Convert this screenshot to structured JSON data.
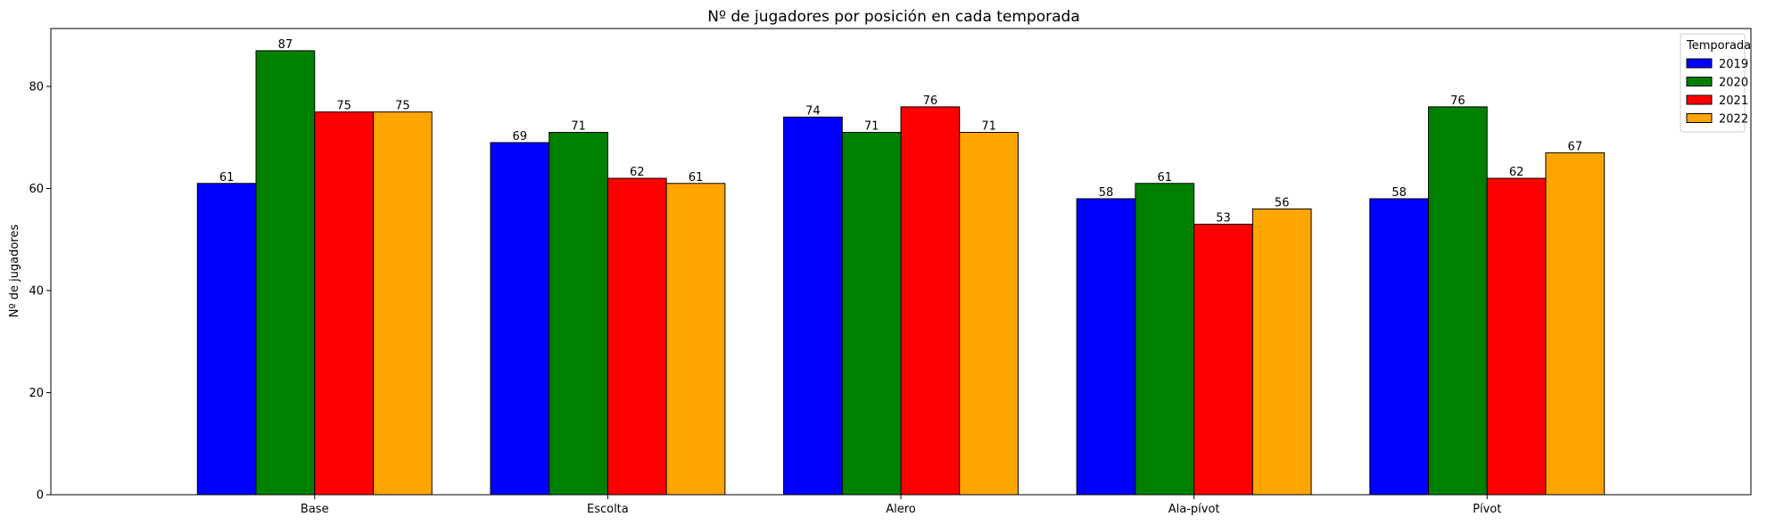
{
  "chart_data": {
    "type": "bar",
    "title": "Nº de jugadores por posición en cada temporada",
    "xlabel": "",
    "ylabel": "Nº de jugadores",
    "categories": [
      "Base",
      "Escolta",
      "Alero",
      "Ala-pívot",
      "Pívot"
    ],
    "series": [
      {
        "name": "2019",
        "color": "#0000ff",
        "values": [
          61,
          69,
          74,
          58,
          58
        ]
      },
      {
        "name": "2020",
        "color": "#008000",
        "values": [
          87,
          71,
          71,
          61,
          76
        ]
      },
      {
        "name": "2021",
        "color": "#ff0000",
        "values": [
          75,
          62,
          76,
          53,
          62
        ]
      },
      {
        "name": "2022",
        "color": "#ffa500",
        "values": [
          75,
          61,
          71,
          56,
          67
        ]
      }
    ],
    "ylim": [
      0,
      91.35
    ],
    "yticks": [
      0,
      20,
      40,
      60,
      80
    ],
    "grid": false,
    "legend": {
      "title": "Temporada",
      "position": "top-right"
    }
  }
}
